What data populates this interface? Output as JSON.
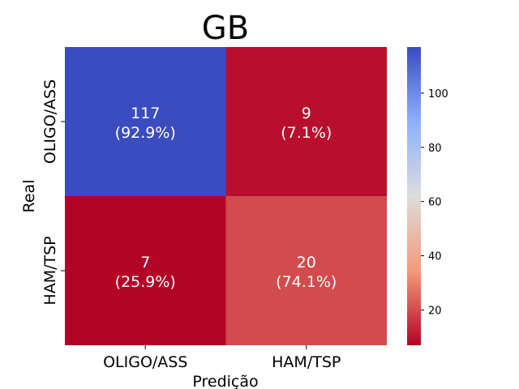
{
  "chart_data": {
    "type": "heatmap",
    "title": "GB",
    "xlabel": "Predição",
    "ylabel": "Real",
    "x_categories": [
      "OLIGO/ASS",
      "HAM/TSP"
    ],
    "y_categories": [
      "OLIGO/ASS",
      "HAM/TSP"
    ],
    "matrix": [
      [
        117,
        9
      ],
      [
        7,
        20
      ]
    ],
    "percentages": [
      [
        "92.9%",
        "7.1%"
      ],
      [
        "25.9%",
        "74.1%"
      ]
    ],
    "colormap": "coolwarm_r",
    "colorbar": {
      "min": 7,
      "max": 117,
      "ticks": [
        20,
        40,
        60,
        80,
        100
      ]
    }
  }
}
